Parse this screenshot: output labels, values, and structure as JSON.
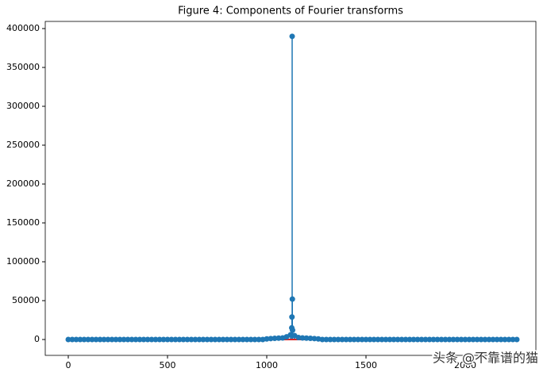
{
  "chart_data": {
    "type": "stem",
    "title": "Figure 4: Components of Fourier transforms",
    "color": "#1f77b4",
    "baseline_color": "#d62728",
    "x": [
      0,
      20,
      40,
      60,
      80,
      100,
      120,
      140,
      160,
      180,
      200,
      220,
      240,
      260,
      280,
      300,
      320,
      340,
      360,
      380,
      400,
      420,
      440,
      460,
      480,
      500,
      520,
      540,
      560,
      580,
      600,
      620,
      640,
      660,
      680,
      700,
      720,
      740,
      760,
      780,
      800,
      820,
      840,
      860,
      880,
      900,
      920,
      940,
      960,
      980,
      1000,
      1020,
      1040,
      1060,
      1080,
      1100,
      1120,
      1126,
      1127,
      1128,
      1129,
      1130,
      1140,
      1160,
      1180,
      1200,
      1220,
      1240,
      1260,
      1280,
      1300,
      1320,
      1340,
      1360,
      1380,
      1400,
      1420,
      1440,
      1460,
      1480,
      1500,
      1520,
      1540,
      1560,
      1580,
      1600,
      1620,
      1640,
      1660,
      1680,
      1700,
      1720,
      1740,
      1760,
      1780,
      1800,
      1820,
      1840,
      1860,
      1880,
      1900,
      1920,
      1940,
      1960,
      1980,
      2000,
      2020,
      2040,
      2060,
      2080,
      2100,
      2120,
      2140,
      2160,
      2180,
      2200,
      2220,
      2240,
      2260
    ],
    "values": [
      0,
      0,
      0,
      0,
      0,
      0,
      0,
      0,
      0,
      0,
      0,
      0,
      0,
      0,
      0,
      0,
      0,
      0,
      0,
      0,
      0,
      0,
      0,
      0,
      0,
      0,
      0,
      0,
      0,
      0,
      0,
      0,
      0,
      0,
      0,
      0,
      0,
      0,
      0,
      0,
      0,
      0,
      0,
      0,
      0,
      0,
      0,
      0,
      0,
      0,
      800,
      1200,
      1500,
      1800,
      2000,
      3500,
      6000,
      15000,
      29000,
      390000,
      52000,
      12000,
      5000,
      2500,
      2000,
      1800,
      1500,
      1200,
      800,
      0,
      0,
      0,
      0,
      0,
      0,
      0,
      0,
      0,
      0,
      0,
      0,
      0,
      0,
      0,
      0,
      0,
      0,
      0,
      0,
      0,
      0,
      0,
      0,
      0,
      0,
      0,
      0,
      0,
      0,
      0,
      0,
      0,
      0,
      0,
      0,
      0,
      0,
      0,
      0,
      0,
      0,
      0,
      0,
      0,
      0,
      0,
      0,
      0,
      0
    ],
    "xlim": [
      -116,
      2356
    ],
    "ylim": [
      -20400,
      409200
    ],
    "xticks": [
      0,
      500,
      1000,
      1500,
      2000
    ],
    "yticks": [
      0,
      50000,
      100000,
      150000,
      200000,
      250000,
      300000,
      350000,
      400000
    ],
    "watermark": "头条 @不靠谱的猫"
  }
}
